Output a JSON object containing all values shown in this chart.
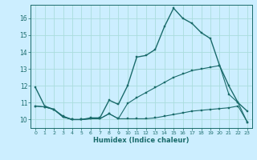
{
  "title": "",
  "xlabel": "Humidex (Indice chaleur)",
  "background_color": "#cceeff",
  "grid_color": "#aadddd",
  "line_color": "#1a6b6b",
  "xlim": [
    -0.5,
    23.5
  ],
  "ylim": [
    9.5,
    16.8
  ],
  "ytick_values": [
    10,
    11,
    12,
    13,
    14,
    15,
    16
  ],
  "curve1_x": [
    0,
    1,
    2,
    3,
    4,
    5,
    6,
    7,
    8,
    9,
    10,
    11,
    12,
    13,
    14,
    15,
    16,
    17,
    18,
    19,
    20,
    21,
    22,
    23
  ],
  "curve1_y": [
    11.9,
    10.8,
    10.6,
    10.2,
    10.0,
    10.0,
    10.1,
    10.1,
    11.15,
    10.9,
    12.0,
    13.7,
    13.8,
    14.15,
    15.5,
    16.6,
    16.0,
    15.7,
    15.15,
    14.8,
    13.2,
    12.0,
    11.0,
    10.5
  ],
  "curve2_x": [
    0,
    1,
    2,
    3,
    4,
    5,
    6,
    7,
    8,
    9,
    10,
    11,
    12,
    13,
    14,
    15,
    16,
    17,
    18,
    19,
    20,
    21,
    22,
    23
  ],
  "curve2_y": [
    10.8,
    10.75,
    10.6,
    10.15,
    10.0,
    10.0,
    10.05,
    10.05,
    10.35,
    10.05,
    10.05,
    10.05,
    10.05,
    10.1,
    10.2,
    10.3,
    10.4,
    10.5,
    10.55,
    10.6,
    10.65,
    10.7,
    10.8,
    9.85
  ],
  "curve3_x": [
    0,
    1,
    2,
    3,
    4,
    5,
    6,
    7,
    8,
    9,
    10,
    11,
    12,
    13,
    14,
    15,
    16,
    17,
    18,
    19,
    20,
    21,
    22,
    23
  ],
  "curve3_y": [
    10.8,
    10.75,
    10.6,
    10.15,
    10.0,
    10.0,
    10.05,
    10.05,
    10.35,
    10.05,
    10.95,
    11.3,
    11.6,
    11.9,
    12.2,
    12.5,
    12.7,
    12.9,
    13.0,
    13.1,
    13.2,
    11.5,
    11.0,
    9.85
  ]
}
